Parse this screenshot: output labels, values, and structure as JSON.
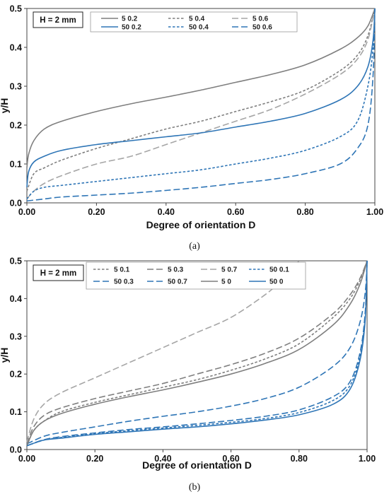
{
  "chart_data": [
    {
      "type": "line",
      "panel_label": "(a)",
      "annotation": "H = 2 mm",
      "xlabel": "Degree of orientation D",
      "ylabel": "y/H",
      "xlim": [
        0,
        1
      ],
      "ylim": [
        0,
        0.5
      ],
      "xticks": [
        "0.00",
        "0.20",
        "0.40",
        "0.60",
        "0.80",
        "1.00"
      ],
      "yticks": [
        "0.0",
        "0.1",
        "0.2",
        "0.3",
        "0.4",
        "0.5"
      ],
      "grid": false,
      "legend_position": "top",
      "series": [
        {
          "name": "5 0.2",
          "color": "#7f7f7f",
          "dash": "solid",
          "x": [
            0,
            0.005,
            0.02,
            0.05,
            0.1,
            0.2,
            0.3,
            0.4,
            0.5,
            0.6,
            0.7,
            0.8,
            0.9,
            0.95,
            0.98,
            1.0
          ],
          "y": [
            0.09,
            0.125,
            0.16,
            0.19,
            0.21,
            0.235,
            0.255,
            0.272,
            0.29,
            0.31,
            0.33,
            0.355,
            0.395,
            0.425,
            0.455,
            0.5
          ]
        },
        {
          "name": "5 0.4",
          "color": "#7f7f7f",
          "dash": "short",
          "x": [
            0,
            0.02,
            0.05,
            0.1,
            0.2,
            0.3,
            0.4,
            0.5,
            0.6,
            0.7,
            0.8,
            0.9,
            0.95,
            0.98,
            1.0
          ],
          "y": [
            0.03,
            0.075,
            0.09,
            0.11,
            0.14,
            0.165,
            0.19,
            0.21,
            0.235,
            0.26,
            0.29,
            0.34,
            0.38,
            0.43,
            0.5
          ]
        },
        {
          "name": "5 0.6",
          "color": "#a6a6a6",
          "dash": "long",
          "x": [
            0,
            0.02,
            0.05,
            0.1,
            0.2,
            0.3,
            0.4,
            0.5,
            0.6,
            0.7,
            0.8,
            0.9,
            0.95,
            0.98,
            1.0
          ],
          "y": [
            0.01,
            0.03,
            0.05,
            0.07,
            0.1,
            0.12,
            0.15,
            0.18,
            0.21,
            0.24,
            0.28,
            0.33,
            0.37,
            0.42,
            0.5
          ]
        },
        {
          "name": "50 0.2",
          "color": "#2e75b6",
          "dash": "solid",
          "x": [
            0,
            0.005,
            0.02,
            0.05,
            0.1,
            0.2,
            0.3,
            0.4,
            0.5,
            0.6,
            0.7,
            0.8,
            0.9,
            0.95,
            0.98,
            0.995,
            1.0
          ],
          "y": [
            0.04,
            0.08,
            0.105,
            0.12,
            0.135,
            0.15,
            0.16,
            0.17,
            0.18,
            0.195,
            0.21,
            0.23,
            0.265,
            0.3,
            0.35,
            0.42,
            0.5
          ]
        },
        {
          "name": "50 0.4",
          "color": "#2e75b6",
          "dash": "short",
          "x": [
            0,
            0.02,
            0.05,
            0.1,
            0.2,
            0.3,
            0.4,
            0.5,
            0.6,
            0.7,
            0.8,
            0.9,
            0.95,
            0.98,
            0.995,
            1.0
          ],
          "y": [
            0.01,
            0.03,
            0.04,
            0.045,
            0.055,
            0.065,
            0.075,
            0.085,
            0.1,
            0.115,
            0.135,
            0.17,
            0.21,
            0.3,
            0.4,
            0.5
          ]
        },
        {
          "name": "50 0.6",
          "color": "#2e75b6",
          "dash": "long",
          "x": [
            0,
            0.05,
            0.1,
            0.2,
            0.3,
            0.4,
            0.5,
            0.6,
            0.7,
            0.8,
            0.9,
            0.95,
            0.98,
            0.995,
            1.0
          ],
          "y": [
            0.005,
            0.01,
            0.015,
            0.02,
            0.025,
            0.032,
            0.04,
            0.05,
            0.06,
            0.075,
            0.1,
            0.14,
            0.2,
            0.33,
            0.5
          ]
        }
      ]
    },
    {
      "type": "line",
      "panel_label": "(b)",
      "annotation": "H = 2 mm",
      "xlabel": "Degree of orientation D",
      "ylabel": "y/H",
      "xlim": [
        0,
        1
      ],
      "ylim": [
        0,
        0.5
      ],
      "xticks": [
        "0.00",
        "0.20",
        "0.40",
        "0.60",
        "0.80",
        "1.00"
      ],
      "yticks": [
        "0.0",
        "0.1",
        "0.2",
        "0.3",
        "0.4",
        "0.5"
      ],
      "grid": false,
      "legend_position": "top",
      "series": [
        {
          "name": "5 0.1",
          "color": "#7f7f7f",
          "dash": "short",
          "x": [
            0,
            0.02,
            0.05,
            0.1,
            0.2,
            0.3,
            0.4,
            0.5,
            0.6,
            0.7,
            0.8,
            0.9,
            0.95,
            0.98,
            1.0
          ],
          "y": [
            0.01,
            0.05,
            0.075,
            0.1,
            0.125,
            0.145,
            0.165,
            0.185,
            0.21,
            0.24,
            0.28,
            0.35,
            0.4,
            0.45,
            0.5
          ]
        },
        {
          "name": "5 0.3",
          "color": "#7f7f7f",
          "dash": "long",
          "x": [
            0,
            0.02,
            0.05,
            0.1,
            0.2,
            0.3,
            0.4,
            0.5,
            0.6,
            0.7,
            0.8,
            0.9,
            0.95,
            0.98,
            1.0
          ],
          "y": [
            0.015,
            0.06,
            0.09,
            0.11,
            0.135,
            0.155,
            0.175,
            0.2,
            0.225,
            0.255,
            0.295,
            0.36,
            0.41,
            0.455,
            0.5
          ]
        },
        {
          "name": "5 0.7",
          "color": "#a6a6a6",
          "dash": "long",
          "x": [
            0,
            0.02,
            0.05,
            0.1,
            0.2,
            0.3,
            0.4,
            0.5,
            0.6,
            0.7,
            0.75,
            0.8
          ],
          "y": [
            0.02,
            0.08,
            0.12,
            0.15,
            0.19,
            0.23,
            0.27,
            0.31,
            0.35,
            0.41,
            0.45,
            0.5
          ]
        },
        {
          "name": "50 0.1",
          "color": "#2e75b6",
          "dash": "short",
          "x": [
            0,
            0.05,
            0.1,
            0.2,
            0.3,
            0.4,
            0.5,
            0.6,
            0.7,
            0.8,
            0.9,
            0.95,
            0.98,
            0.995,
            1.0
          ],
          "y": [
            0.01,
            0.025,
            0.032,
            0.042,
            0.05,
            0.057,
            0.064,
            0.072,
            0.082,
            0.098,
            0.13,
            0.17,
            0.25,
            0.36,
            0.5
          ]
        },
        {
          "name": "50 0.3",
          "color": "#2e75b6",
          "dash": "long",
          "x": [
            0,
            0.05,
            0.1,
            0.2,
            0.3,
            0.4,
            0.5,
            0.6,
            0.7,
            0.8,
            0.9,
            0.95,
            0.98,
            0.995,
            1.0
          ],
          "y": [
            0.01,
            0.026,
            0.034,
            0.044,
            0.053,
            0.06,
            0.068,
            0.077,
            0.088,
            0.105,
            0.14,
            0.18,
            0.26,
            0.37,
            0.5
          ]
        },
        {
          "name": "50 0.7",
          "color": "#2e75b6",
          "dash": "long",
          "x": [
            0,
            0.05,
            0.1,
            0.2,
            0.3,
            0.4,
            0.5,
            0.6,
            0.7,
            0.8,
            0.9,
            0.95,
            0.98,
            0.995,
            1.0
          ],
          "y": [
            0.015,
            0.035,
            0.045,
            0.06,
            0.075,
            0.088,
            0.1,
            0.115,
            0.135,
            0.165,
            0.22,
            0.27,
            0.34,
            0.42,
            0.5
          ]
        },
        {
          "name": "5 0",
          "color": "#7f7f7f",
          "dash": "solid",
          "x": [
            0,
            0.02,
            0.05,
            0.1,
            0.2,
            0.3,
            0.4,
            0.5,
            0.6,
            0.7,
            0.8,
            0.9,
            0.95,
            0.98,
            1.0
          ],
          "y": [
            0.01,
            0.05,
            0.075,
            0.095,
            0.12,
            0.14,
            0.158,
            0.178,
            0.2,
            0.228,
            0.265,
            0.33,
            0.385,
            0.44,
            0.5
          ]
        },
        {
          "name": "50 0",
          "color": "#2e75b6",
          "dash": "solid",
          "x": [
            0,
            0.05,
            0.1,
            0.2,
            0.3,
            0.4,
            0.5,
            0.6,
            0.7,
            0.8,
            0.9,
            0.95,
            0.98,
            0.995,
            1.0
          ],
          "y": [
            0.01,
            0.025,
            0.03,
            0.04,
            0.047,
            0.054,
            0.06,
            0.068,
            0.078,
            0.092,
            0.12,
            0.16,
            0.24,
            0.35,
            0.5
          ]
        }
      ]
    }
  ]
}
